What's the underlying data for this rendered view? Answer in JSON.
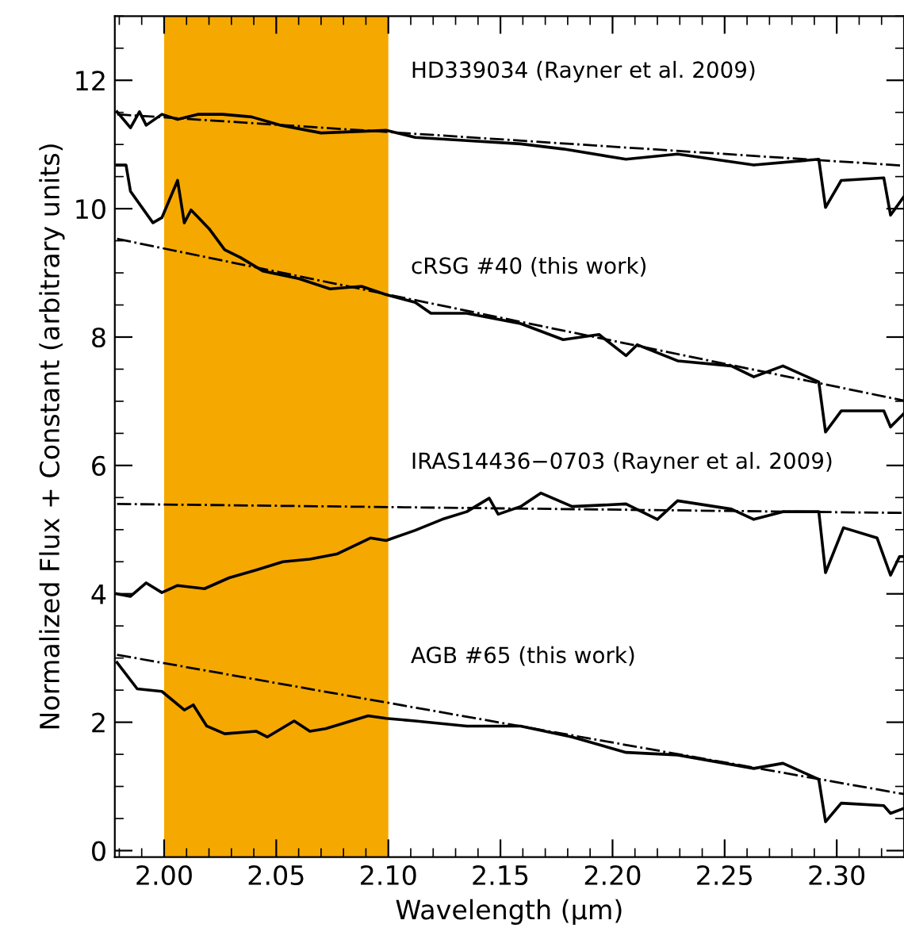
{
  "chart_data": {
    "type": "line",
    "xlabel": "Wavelength (μm)",
    "ylabel": "Normalized Flux + Constant (arbitrary units)",
    "xlim": [
      1.978,
      2.33
    ],
    "ylim": [
      -0.1,
      13.0
    ],
    "xticks": [
      {
        "value": 2.0,
        "label": "2.00"
      },
      {
        "value": 2.05,
        "label": "2.05"
      },
      {
        "value": 2.1,
        "label": "2.10"
      },
      {
        "value": 2.15,
        "label": "2.15"
      },
      {
        "value": 2.2,
        "label": "2.20"
      },
      {
        "value": 2.25,
        "label": "2.25"
      },
      {
        "value": 2.3,
        "label": "2.30"
      }
    ],
    "yticks": [
      0,
      2,
      4,
      6,
      8,
      10,
      12
    ],
    "grid": false,
    "legend": false,
    "marker": "none",
    "bands": [
      {
        "axis": "x",
        "from": 2.0,
        "to": 2.1,
        "color": "#f5a800"
      }
    ],
    "series": [
      {
        "color": "#000000",
        "line_style": "solid",
        "x": [
          1.979,
          1.985,
          1.989,
          1.992,
          1.999,
          2.006,
          2.015,
          2.026,
          2.039,
          2.052,
          2.07,
          2.099,
          2.112,
          2.135,
          2.159,
          2.178,
          2.206,
          2.229,
          2.263,
          2.292,
          2.295,
          2.302,
          2.321,
          2.324,
          2.33
        ],
        "values": [
          11.51,
          11.26,
          11.51,
          11.3,
          11.47,
          11.39,
          11.47,
          11.47,
          11.43,
          11.3,
          11.18,
          11.22,
          11.11,
          11.06,
          11.01,
          10.93,
          10.77,
          10.85,
          10.68,
          10.77,
          10.02,
          10.44,
          10.48,
          9.9,
          10.19
        ]
      },
      {
        "color": "#000000",
        "line_style": "dashdot",
        "x": [
          1.979,
          2.33
        ],
        "values": [
          11.47,
          10.67
        ]
      },
      {
        "color": "#000000",
        "line_style": "solid",
        "x": [
          1.979,
          1.983,
          1.985,
          1.995,
          1.999,
          2.006,
          2.009,
          2.012,
          2.02,
          2.027,
          2.034,
          2.044,
          2.06,
          2.074,
          2.088,
          2.099,
          2.112,
          2.119,
          2.135,
          2.159,
          2.178,
          2.194,
          2.206,
          2.211,
          2.229,
          2.253,
          2.263,
          2.276,
          2.292,
          2.295,
          2.302,
          2.321,
          2.324,
          2.33
        ],
        "values": [
          10.68,
          10.68,
          10.27,
          9.78,
          9.86,
          10.44,
          9.78,
          9.98,
          9.69,
          9.36,
          9.24,
          9.03,
          8.91,
          8.75,
          8.79,
          8.66,
          8.54,
          8.37,
          8.37,
          8.21,
          7.96,
          8.04,
          7.71,
          7.88,
          7.63,
          7.55,
          7.38,
          7.55,
          7.3,
          6.52,
          6.85,
          6.85,
          6.6,
          6.81
        ]
      },
      {
        "color": "#000000",
        "line_style": "dashdot",
        "x": [
          1.979,
          2.33
        ],
        "values": [
          9.53,
          7.01
        ]
      },
      {
        "color": "#000000",
        "line_style": "solid",
        "x": [
          1.979,
          1.985,
          1.992,
          1.999,
          2.006,
          2.018,
          2.029,
          2.041,
          2.053,
          2.065,
          2.077,
          2.092,
          2.099,
          2.112,
          2.124,
          2.135,
          2.145,
          2.149,
          2.159,
          2.168,
          2.182,
          2.206,
          2.22,
          2.229,
          2.253,
          2.263,
          2.276,
          2.292,
          2.295,
          2.303,
          2.318,
          2.324,
          2.328,
          2.33
        ],
        "values": [
          4.0,
          3.96,
          4.17,
          4.02,
          4.13,
          4.08,
          4.25,
          4.37,
          4.5,
          4.54,
          4.62,
          4.87,
          4.83,
          4.99,
          5.16,
          5.28,
          5.49,
          5.24,
          5.36,
          5.57,
          5.36,
          5.4,
          5.16,
          5.45,
          5.32,
          5.16,
          5.28,
          5.28,
          4.33,
          5.03,
          4.87,
          4.29,
          4.58,
          4.58
        ]
      },
      {
        "color": "#000000",
        "line_style": "dashdot",
        "x": [
          1.979,
          2.33
        ],
        "values": [
          5.4,
          5.26
        ]
      },
      {
        "color": "#000000",
        "line_style": "solid",
        "x": [
          1.979,
          1.988,
          1.999,
          2.009,
          2.013,
          2.019,
          2.027,
          2.041,
          2.046,
          2.058,
          2.065,
          2.072,
          2.091,
          2.099,
          2.112,
          2.135,
          2.159,
          2.182,
          2.206,
          2.229,
          2.263,
          2.276,
          2.292,
          2.295,
          2.302,
          2.321,
          2.324,
          2.33
        ],
        "values": [
          2.93,
          2.52,
          2.48,
          2.19,
          2.27,
          1.94,
          1.82,
          1.86,
          1.77,
          2.02,
          1.86,
          1.9,
          2.1,
          2.06,
          2.02,
          1.94,
          1.94,
          1.77,
          1.53,
          1.49,
          1.28,
          1.36,
          1.11,
          0.45,
          0.74,
          0.7,
          0.58,
          0.66
        ]
      },
      {
        "color": "#000000",
        "line_style": "dashdot",
        "x": [
          1.979,
          2.33
        ],
        "values": [
          3.05,
          0.88
        ]
      }
    ],
    "annotations": [
      "HD339034 (Rayner et al. 2009)",
      "cRSG #40 (this work)",
      "IRAS14436−0703 (Rayner et al. 2009)",
      "AGB #65 (this work)"
    ]
  }
}
